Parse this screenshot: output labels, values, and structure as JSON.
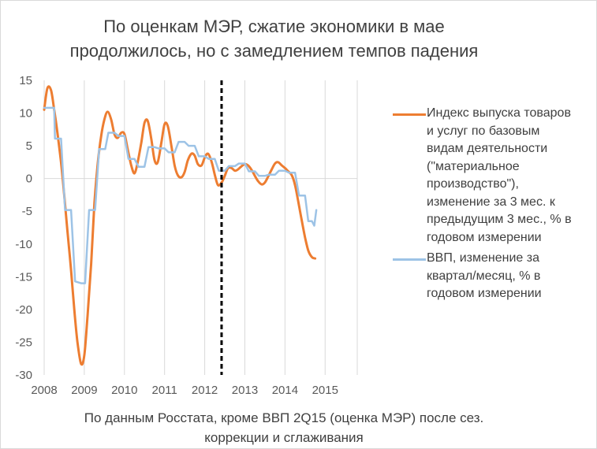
{
  "chart_data": {
    "type": "line",
    "title_lines": [
      "По оценкам МЭР, сжатие экономики в мае",
      "продолжилось, но с замедлением темпов падения"
    ],
    "caption_lines": [
      "По данным Росстата, кроме ВВП 2Q15 (оценка МЭР) после сез.",
      "коррекции и сглаживания"
    ],
    "xlim": [
      2008,
      2015.8
    ],
    "ylim": [
      -30,
      15
    ],
    "y_ticks": [
      15,
      10,
      5,
      0,
      -5,
      -10,
      -15,
      -20,
      -25,
      -30
    ],
    "y_tick_labels": [
      "15",
      "10",
      "5",
      "0",
      "-5",
      "-10",
      "-15",
      "-20",
      "-25",
      "-30"
    ],
    "x_ticks": [
      2008,
      2009,
      2010,
      2011,
      2012,
      2013,
      2014,
      2015
    ],
    "x_tick_labels": [
      "2008",
      "2009",
      "2010",
      "2011",
      "2012",
      "2013",
      "2014",
      "2015"
    ],
    "grid": "vertical",
    "legend_position": "right",
    "reference_line": {
      "x": 2012.42,
      "style": "dashed",
      "color": "#000000"
    },
    "series": [
      {
        "name": "Индекс выпуска товаров и услуг по базовым видам деятельности (\"материальное производство\"), изменение за 3 мес. к предыдущим 3 мес., % в годовом измерении",
        "legend_text": "Индекс выпуска товаров\nи услуг по базовым\nвидам деятельности\n(\"материальное\nпроизводство\"),\nизменение за 3 мес. к\nпредыдущим 3 мес., % в\nгодовом измерении",
        "color": "#ed7d31",
        "style": "smooth",
        "points": [
          [
            2008.0,
            10.5
          ],
          [
            2008.08,
            13.8
          ],
          [
            2008.17,
            13.5
          ],
          [
            2008.25,
            10.5
          ],
          [
            2008.33,
            7.0
          ],
          [
            2008.42,
            2.5
          ],
          [
            2008.5,
            -2.5
          ],
          [
            2008.58,
            -8.0
          ],
          [
            2008.67,
            -14.0
          ],
          [
            2008.75,
            -20.0
          ],
          [
            2008.83,
            -25.0
          ],
          [
            2008.92,
            -28.3
          ],
          [
            2009.0,
            -27.0
          ],
          [
            2009.08,
            -21.0
          ],
          [
            2009.17,
            -13.0
          ],
          [
            2009.25,
            -4.0
          ],
          [
            2009.33,
            2.0
          ],
          [
            2009.42,
            6.5
          ],
          [
            2009.5,
            9.0
          ],
          [
            2009.58,
            10.2
          ],
          [
            2009.67,
            9.0
          ],
          [
            2009.75,
            6.8
          ],
          [
            2009.83,
            6.2
          ],
          [
            2009.92,
            7.0
          ],
          [
            2010.0,
            6.8
          ],
          [
            2010.08,
            4.5
          ],
          [
            2010.17,
            2.0
          ],
          [
            2010.25,
            0.8
          ],
          [
            2010.33,
            2.5
          ],
          [
            2010.42,
            5.5
          ],
          [
            2010.5,
            8.5
          ],
          [
            2010.58,
            8.8
          ],
          [
            2010.67,
            6.0
          ],
          [
            2010.75,
            2.8
          ],
          [
            2010.83,
            2.5
          ],
          [
            2010.92,
            5.5
          ],
          [
            2011.0,
            8.3
          ],
          [
            2011.08,
            8.0
          ],
          [
            2011.17,
            5.0
          ],
          [
            2011.25,
            2.0
          ],
          [
            2011.33,
            0.5
          ],
          [
            2011.42,
            0.2
          ],
          [
            2011.5,
            1.0
          ],
          [
            2011.58,
            2.8
          ],
          [
            2011.67,
            3.8
          ],
          [
            2011.75,
            3.5
          ],
          [
            2011.83,
            2.2
          ],
          [
            2011.92,
            2.0
          ],
          [
            2012.0,
            3.2
          ],
          [
            2012.08,
            3.8
          ],
          [
            2012.17,
            2.6
          ],
          [
            2012.25,
            0.6
          ],
          [
            2012.33,
            -1.0
          ],
          [
            2012.42,
            -0.6
          ],
          [
            2012.5,
            0.4
          ],
          [
            2012.58,
            1.6
          ],
          [
            2012.67,
            1.6
          ],
          [
            2012.75,
            1.2
          ],
          [
            2012.83,
            1.4
          ],
          [
            2012.92,
            1.9
          ],
          [
            2013.0,
            2.2
          ],
          [
            2013.08,
            2.0
          ],
          [
            2013.17,
            1.3
          ],
          [
            2013.25,
            0.4
          ],
          [
            2013.33,
            -0.4
          ],
          [
            2013.42,
            -0.9
          ],
          [
            2013.5,
            -0.6
          ],
          [
            2013.58,
            0.3
          ],
          [
            2013.67,
            1.4
          ],
          [
            2013.75,
            2.3
          ],
          [
            2013.83,
            2.5
          ],
          [
            2013.92,
            2.0
          ],
          [
            2014.0,
            1.6
          ],
          [
            2014.08,
            1.1
          ],
          [
            2014.17,
            0.5
          ],
          [
            2014.25,
            -1.0
          ],
          [
            2014.33,
            -3.5
          ],
          [
            2014.42,
            -6.5
          ],
          [
            2014.5,
            -9.0
          ],
          [
            2014.58,
            -11.0
          ],
          [
            2014.67,
            -12.0
          ],
          [
            2014.75,
            -12.2
          ]
        ]
      },
      {
        "name": "ВВП, изменение за квартал/месяц, % в годовом измерении",
        "legend_text": "ВВП, изменение за\nквартал/месяц, % в\nгодовом измерении",
        "color": "#9dc3e6",
        "style": "step",
        "points": [
          [
            2008.0,
            10.8
          ],
          [
            2008.25,
            10.8
          ],
          [
            2008.27,
            6.1
          ],
          [
            2008.42,
            6.1
          ],
          [
            2008.52,
            -4.8
          ],
          [
            2008.67,
            -4.8
          ],
          [
            2008.77,
            -15.7
          ],
          [
            2008.92,
            -16.0
          ],
          [
            2009.02,
            -16.0
          ],
          [
            2009.12,
            -4.8
          ],
          [
            2009.27,
            -4.8
          ],
          [
            2009.37,
            4.5
          ],
          [
            2009.52,
            4.5
          ],
          [
            2009.6,
            7.0
          ],
          [
            2009.75,
            7.0
          ],
          [
            2009.85,
            6.5
          ],
          [
            2010.0,
            6.5
          ],
          [
            2010.1,
            3.0
          ],
          [
            2010.25,
            3.0
          ],
          [
            2010.35,
            1.8
          ],
          [
            2010.5,
            1.8
          ],
          [
            2010.6,
            4.8
          ],
          [
            2010.75,
            4.8
          ],
          [
            2010.85,
            4.6
          ],
          [
            2011.0,
            4.6
          ],
          [
            2011.1,
            4.0
          ],
          [
            2011.25,
            4.0
          ],
          [
            2011.35,
            5.6
          ],
          [
            2011.5,
            5.6
          ],
          [
            2011.6,
            5.0
          ],
          [
            2011.75,
            5.0
          ],
          [
            2011.85,
            3.4
          ],
          [
            2012.0,
            3.4
          ],
          [
            2012.1,
            3.0
          ],
          [
            2012.25,
            3.0
          ],
          [
            2012.35,
            1.2
          ],
          [
            2012.5,
            1.2
          ],
          [
            2012.6,
            1.9
          ],
          [
            2012.75,
            1.9
          ],
          [
            2012.85,
            2.3
          ],
          [
            2013.0,
            2.3
          ],
          [
            2013.1,
            1.1
          ],
          [
            2013.25,
            1.1
          ],
          [
            2013.35,
            0.4
          ],
          [
            2013.5,
            0.4
          ],
          [
            2013.6,
            0.6
          ],
          [
            2013.75,
            0.6
          ],
          [
            2013.85,
            1.2
          ],
          [
            2014.0,
            1.2
          ],
          [
            2014.1,
            0.9
          ],
          [
            2014.25,
            0.9
          ],
          [
            2014.35,
            -2.6
          ],
          [
            2014.5,
            -2.6
          ],
          [
            2014.58,
            -6.5
          ],
          [
            2014.67,
            -6.5
          ],
          [
            2014.73,
            -7.2
          ],
          [
            2014.78,
            -4.8
          ]
        ]
      }
    ]
  }
}
